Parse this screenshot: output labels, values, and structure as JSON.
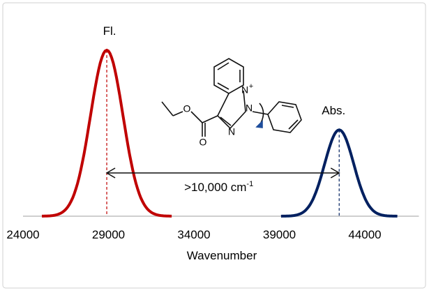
{
  "chart_data": {
    "type": "gaussian-peaks",
    "xlabel": "Wavenumber",
    "xlim": [
      24000,
      47000
    ],
    "xticks": [
      24000,
      29000,
      34000,
      39000,
      44000
    ],
    "series": [
      {
        "name": "Fl.",
        "color": "#c00000",
        "center": 28900,
        "height": 1,
        "sigma": 950
      },
      {
        "name": "Abs.",
        "color": "#002060",
        "center": 42500,
        "height": 0.52,
        "sigma": 850
      }
    ],
    "annotation": {
      "text": ">10,000 cm",
      "superscript": "-1"
    }
  },
  "molecule": {
    "atoms": [
      "N",
      "N",
      "N",
      "O",
      "O"
    ],
    "charge": "+"
  }
}
